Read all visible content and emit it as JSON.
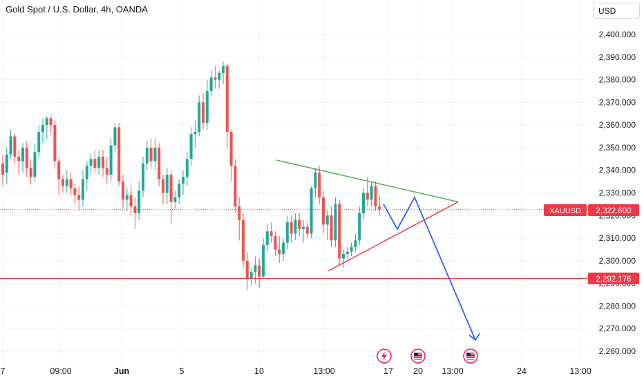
{
  "header": {
    "title": "Gold Spot / U.S. Dollar, 4h, OANDA",
    "currency": "USD"
  },
  "price_tags": {
    "symbol": "XAUUSD",
    "last_price": "2,322.600",
    "support_price": "2,292.176"
  },
  "colors": {
    "up": "#26a69a",
    "down": "#ef5350",
    "tag": "#f23645",
    "trend_upper": "#4caf50",
    "trend_lower": "#f23645",
    "projection": "#2962ff",
    "grid": "#f0f3fa",
    "axis_text": "#131722"
  },
  "chart_data": {
    "type": "candlestick",
    "symbol": "XAUUSD",
    "interval": "4h",
    "x_tick_labels": [
      "7",
      "09:00",
      "Jun",
      "5",
      "10",
      "13:00",
      "17",
      "20",
      "13:00",
      "24",
      "13:00"
    ],
    "y_ticks": [
      2260,
      2270,
      2280,
      2290,
      2300,
      2310,
      2320,
      2330,
      2340,
      2350,
      2360,
      2370,
      2380,
      2390,
      2400
    ],
    "y_tick_labels": [
      "2,260.000",
      "2,270.000",
      "2,280.000",
      "2,290.000",
      "2,300.000",
      "2,310.000",
      "2,320.000",
      "2,330.000",
      "2,340.000",
      "2,350.000",
      "2,360.000",
      "2,370.000",
      "2,380.000",
      "2,390.000",
      "2,400.000"
    ],
    "ylim": [
      2255,
      2412
    ],
    "grid": true,
    "candles": [
      [
        2343,
        2347,
        2333,
        2338
      ],
      [
        2339,
        2350,
        2334,
        2347
      ],
      [
        2347,
        2358,
        2345,
        2355
      ],
      [
        2355,
        2356,
        2343,
        2346
      ],
      [
        2346,
        2349,
        2338,
        2344
      ],
      [
        2344,
        2352,
        2339,
        2350
      ],
      [
        2350,
        2353,
        2337,
        2341
      ],
      [
        2341,
        2345,
        2334,
        2337
      ],
      [
        2337,
        2352,
        2335,
        2348
      ],
      [
        2348,
        2360,
        2346,
        2357
      ],
      [
        2357,
        2363,
        2352,
        2360
      ],
      [
        2360,
        2364,
        2354,
        2363
      ],
      [
        2363,
        2364,
        2356,
        2360
      ],
      [
        2360,
        2362,
        2341,
        2344
      ],
      [
        2344,
        2346,
        2329,
        2336
      ],
      [
        2336,
        2338,
        2330,
        2333
      ],
      [
        2333,
        2340,
        2330,
        2336
      ],
      [
        2336,
        2339,
        2329,
        2332
      ],
      [
        2332,
        2334,
        2325,
        2329
      ],
      [
        2329,
        2333,
        2322,
        2327
      ],
      [
        2327,
        2340,
        2324,
        2336
      ],
      [
        2336,
        2344,
        2331,
        2342
      ],
      [
        2342,
        2347,
        2338,
        2345
      ],
      [
        2345,
        2349,
        2339,
        2341
      ],
      [
        2341,
        2349,
        2338,
        2346
      ],
      [
        2346,
        2349,
        2337,
        2341
      ],
      [
        2341,
        2346,
        2334,
        2338
      ],
      [
        2338,
        2354,
        2335,
        2351
      ],
      [
        2351,
        2361,
        2348,
        2359
      ],
      [
        2359,
        2361,
        2333,
        2335
      ],
      [
        2335,
        2338,
        2323,
        2327
      ],
      [
        2327,
        2332,
        2322,
        2329
      ],
      [
        2329,
        2333,
        2320,
        2324
      ],
      [
        2324,
        2328,
        2314,
        2321
      ],
      [
        2321,
        2335,
        2318,
        2331
      ],
      [
        2331,
        2346,
        2328,
        2343
      ],
      [
        2343,
        2353,
        2340,
        2350
      ],
      [
        2350,
        2354,
        2341,
        2344
      ],
      [
        2344,
        2354,
        2340,
        2350
      ],
      [
        2350,
        2352,
        2333,
        2336
      ],
      [
        2336,
        2338,
        2325,
        2330
      ],
      [
        2330,
        2341,
        2325,
        2338
      ],
      [
        2338,
        2340,
        2316,
        2326
      ],
      [
        2326,
        2331,
        2323,
        2328
      ],
      [
        2328,
        2336,
        2325,
        2334
      ],
      [
        2334,
        2340,
        2329,
        2337
      ],
      [
        2337,
        2348,
        2333,
        2345
      ],
      [
        2345,
        2359,
        2342,
        2356
      ],
      [
        2356,
        2362,
        2350,
        2357
      ],
      [
        2357,
        2373,
        2355,
        2370
      ],
      [
        2370,
        2374,
        2358,
        2361
      ],
      [
        2361,
        2380,
        2358,
        2375
      ],
      [
        2375,
        2384,
        2373,
        2381
      ],
      [
        2381,
        2386,
        2376,
        2380
      ],
      [
        2380,
        2384,
        2376,
        2383
      ],
      [
        2383,
        2388,
        2378,
        2386
      ],
      [
        2386,
        2387,
        2350,
        2357
      ],
      [
        2357,
        2358,
        2335,
        2342
      ],
      [
        2342,
        2345,
        2321,
        2324
      ],
      [
        2324,
        2328,
        2309,
        2318
      ],
      [
        2318,
        2321,
        2297,
        2300
      ],
      [
        2300,
        2304,
        2287,
        2292
      ],
      [
        2292,
        2297,
        2289,
        2295
      ],
      [
        2295,
        2302,
        2290,
        2298
      ],
      [
        2298,
        2301,
        2288,
        2293
      ],
      [
        2293,
        2310,
        2292,
        2307
      ],
      [
        2307,
        2316,
        2304,
        2313
      ],
      [
        2313,
        2317,
        2308,
        2311
      ],
      [
        2311,
        2313,
        2302,
        2305
      ],
      [
        2305,
        2311,
        2299,
        2303
      ],
      [
        2303,
        2310,
        2300,
        2308
      ],
      [
        2308,
        2320,
        2305,
        2317
      ],
      [
        2317,
        2320,
        2308,
        2312
      ],
      [
        2312,
        2321,
        2309,
        2318
      ],
      [
        2318,
        2321,
        2311,
        2314
      ],
      [
        2314,
        2318,
        2308,
        2315
      ],
      [
        2315,
        2317,
        2310,
        2312
      ],
      [
        2312,
        2333,
        2310,
        2332
      ],
      [
        2332,
        2341,
        2328,
        2339
      ],
      [
        2339,
        2342,
        2325,
        2328
      ],
      [
        2328,
        2331,
        2312,
        2316
      ],
      [
        2316,
        2322,
        2309,
        2320
      ],
      [
        2320,
        2324,
        2306,
        2309
      ],
      [
        2309,
        2328,
        2306,
        2325
      ],
      [
        2325,
        2327,
        2298,
        2301
      ],
      [
        2301,
        2305,
        2297,
        2303
      ],
      [
        2303,
        2306,
        2301,
        2304
      ],
      [
        2304,
        2308,
        2302,
        2306
      ],
      [
        2306,
        2312,
        2304,
        2309
      ],
      [
        2309,
        2324,
        2307,
        2321
      ],
      [
        2321,
        2332,
        2318,
        2330
      ],
      [
        2330,
        2337,
        2324,
        2327
      ],
      [
        2327,
        2335,
        2324,
        2333
      ],
      [
        2333,
        2335,
        2322,
        2324
      ],
      [
        2324,
        2329,
        2320,
        2322.6
      ]
    ],
    "last_price": 2322.6,
    "horizontal_lines": [
      2292.176
    ],
    "trendlines": [
      {
        "color": "green",
        "points": [
          [
            0,
            2344.5
          ],
          [
            1,
            2326
          ]
        ]
      },
      {
        "color": "red",
        "points": [
          [
            0,
            2295.5
          ],
          [
            1,
            2326
          ]
        ]
      }
    ],
    "projection_path": [
      2325,
      2314,
      2328,
      2265
    ]
  }
}
